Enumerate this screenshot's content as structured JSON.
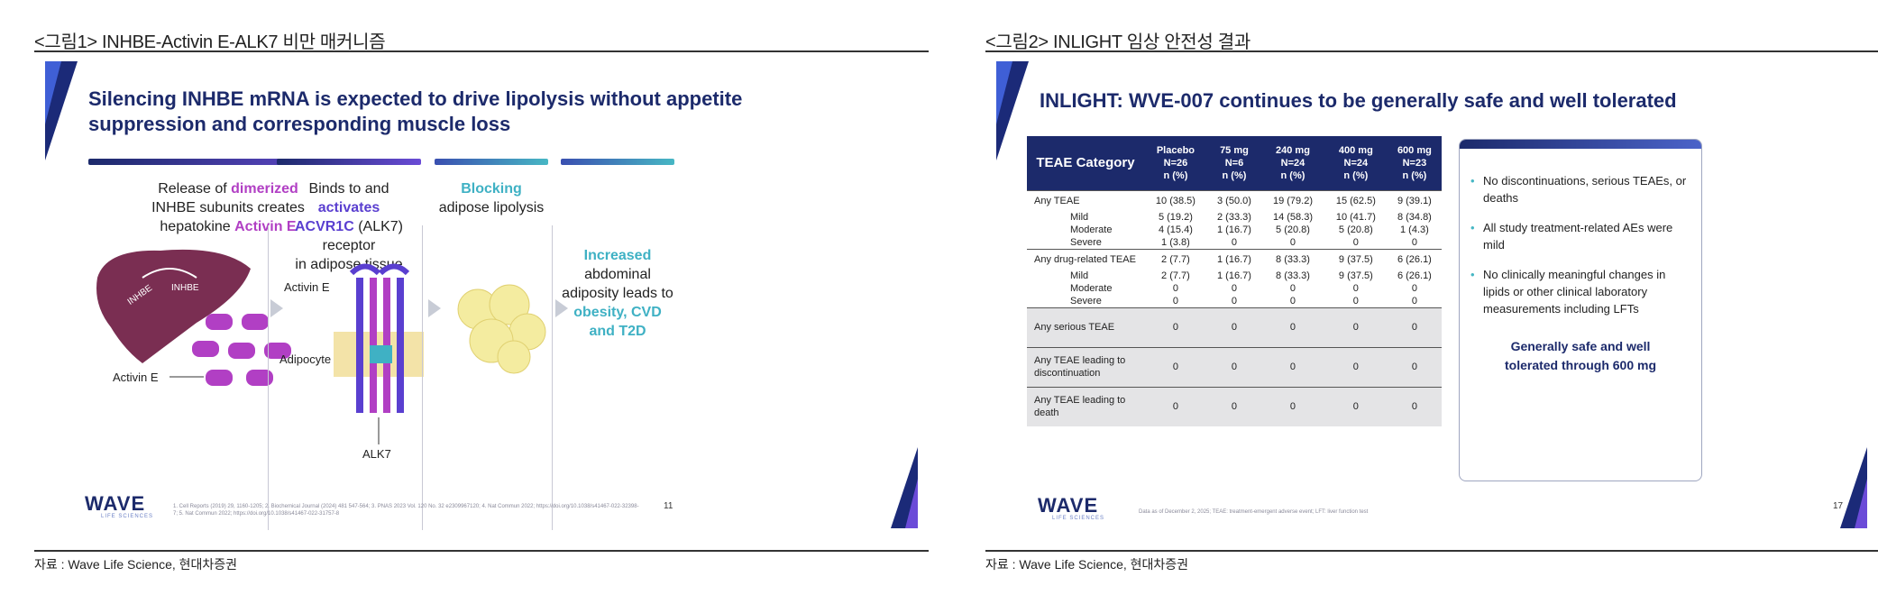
{
  "left": {
    "caption": "<그림1> INHBE-Activin E-ALK7 비만 매커니즘",
    "source": "자료 : Wave Life Science, 현대차증권",
    "slide": {
      "title_line1": "Silencing INHBE mRNA is expected to drive lipolysis without appetite",
      "title_line2": "suppression and corresponding muscle loss",
      "col1": {
        "t1": "Release of ",
        "t2": "dimerized",
        "t3": "INHBE subunits creates",
        "t4": "hepatokine ",
        "t5": "Activin E"
      },
      "col2": {
        "t1": "Binds to and ",
        "t2": "activates",
        "t3": "ACVR1C",
        "t4": " (ALK7) receptor",
        "t5": "in adipose tissue"
      },
      "col3": {
        "t1": "Blocking",
        "t2": "adipose lipolysis"
      },
      "col4": {
        "t1": "Increased",
        "t2": "abdominal",
        "t3": "adiposity leads to",
        "t4": "obesity, CVD",
        "t5": "and T2D"
      },
      "labels": {
        "inhbe_a": "INHBE",
        "inhbe_b": "INHBE",
        "activin_left": "Activin E",
        "activin_receptor": "Activin E",
        "adipocyte": "Adipocyte",
        "alk7": "ALK7"
      },
      "logo": "WAVE",
      "logo_sub": "LIFE SCIENCES",
      "footnote": "1. Cell Reports (2019) 29, 1160-1205; 2. Biochemical Journal (2024) 481 547-564; 3. PNAS 2023 Vol. 120 No. 32 e2309967120; 4. Nat Commun 2022; https://doi.org/10.1038/s41467-022-32398-7; 5. Nat Commun 2022; https://doi.org/10.1038/s41467-022-31757-8",
      "page": "11"
    }
  },
  "right": {
    "caption": "<그림2> INLIGHT 임상 안전성 결과",
    "source": "자료 : Wave Life Science, 현대차증권",
    "slide": {
      "title": "INLIGHT: WVE-007 continues to be generally safe and well tolerated",
      "table": {
        "header_category": "TEAE Category",
        "columns": [
          {
            "l1": "Placebo",
            "l2": "N=26",
            "l3": "n (%)"
          },
          {
            "l1": "75 mg",
            "l2": "N=6",
            "l3": "n (%)"
          },
          {
            "l1": "240 mg",
            "l2": "N=24",
            "l3": "n (%)"
          },
          {
            "l1": "400 mg",
            "l2": "N=24",
            "l3": "n (%)"
          },
          {
            "l1": "600 mg",
            "l2": "N=23",
            "l3": "n (%)"
          }
        ],
        "groups": [
          {
            "rows": [
              {
                "label": "Any TEAE",
                "sub": false,
                "v": [
                  "10 (38.5)",
                  "3 (50.0)",
                  "19 (79.2)",
                  "15 (62.5)",
                  "9 (39.1)"
                ]
              },
              {
                "label": "Mild",
                "sub": true,
                "v": [
                  "5 (19.2)",
                  "2 (33.3)",
                  "14 (58.3)",
                  "10 (41.7)",
                  "8 (34.8)"
                ]
              },
              {
                "label": "Moderate",
                "sub": true,
                "v": [
                  "4 (15.4)",
                  "1 (16.7)",
                  "5 (20.8)",
                  "5 (20.8)",
                  "1 (4.3)"
                ]
              },
              {
                "label": "Severe",
                "sub": true,
                "v": [
                  "1 (3.8)",
                  "0",
                  "0",
                  "0",
                  "0"
                ]
              }
            ]
          },
          {
            "rows": [
              {
                "label": "Any drug-related TEAE",
                "sub": false,
                "v": [
                  "2 (7.7)",
                  "1 (16.7)",
                  "8 (33.3)",
                  "9 (37.5)",
                  "6 (26.1)"
                ]
              },
              {
                "label": "Mild",
                "sub": true,
                "v": [
                  "2 (7.7)",
                  "1 (16.7)",
                  "8 (33.3)",
                  "9 (37.5)",
                  "6 (26.1)"
                ]
              },
              {
                "label": "Moderate",
                "sub": true,
                "v": [
                  "0",
                  "0",
                  "0",
                  "0",
                  "0"
                ]
              },
              {
                "label": "Severe",
                "sub": true,
                "v": [
                  "0",
                  "0",
                  "0",
                  "0",
                  "0"
                ]
              }
            ]
          },
          {
            "rows": [
              {
                "label": "Any serious TEAE",
                "sub": false,
                "v": [
                  "0",
                  "0",
                  "0",
                  "0",
                  "0"
                ]
              }
            ]
          },
          {
            "rows": [
              {
                "label": "Any TEAE leading to discontinuation",
                "sub": false,
                "v": [
                  "0",
                  "0",
                  "0",
                  "0",
                  "0"
                ]
              }
            ]
          },
          {
            "rows": [
              {
                "label": "Any TEAE leading to death",
                "sub": false,
                "v": [
                  "0",
                  "0",
                  "0",
                  "0",
                  "0"
                ]
              }
            ]
          }
        ]
      },
      "bullets": [
        "No discontinuations, serious TEAEs, or deaths",
        "All study treatment-related AEs were mild",
        "No clinically meaningful changes in lipids or other clinical laboratory measurements including LFTs"
      ],
      "summary": "Generally safe and well tolerated through 600 mg",
      "logo": "WAVE",
      "logo_sub": "LIFE SCIENCES",
      "footnote": "Data as of December 2, 2025; TEAE: treatment-emergent adverse event; LFT: liver function test",
      "page": "17"
    }
  },
  "colors": {
    "navy": "#1c2a6b",
    "magenta": "#b13fc4",
    "violet": "#5a3fd0",
    "teal": "#3fb1c4"
  }
}
